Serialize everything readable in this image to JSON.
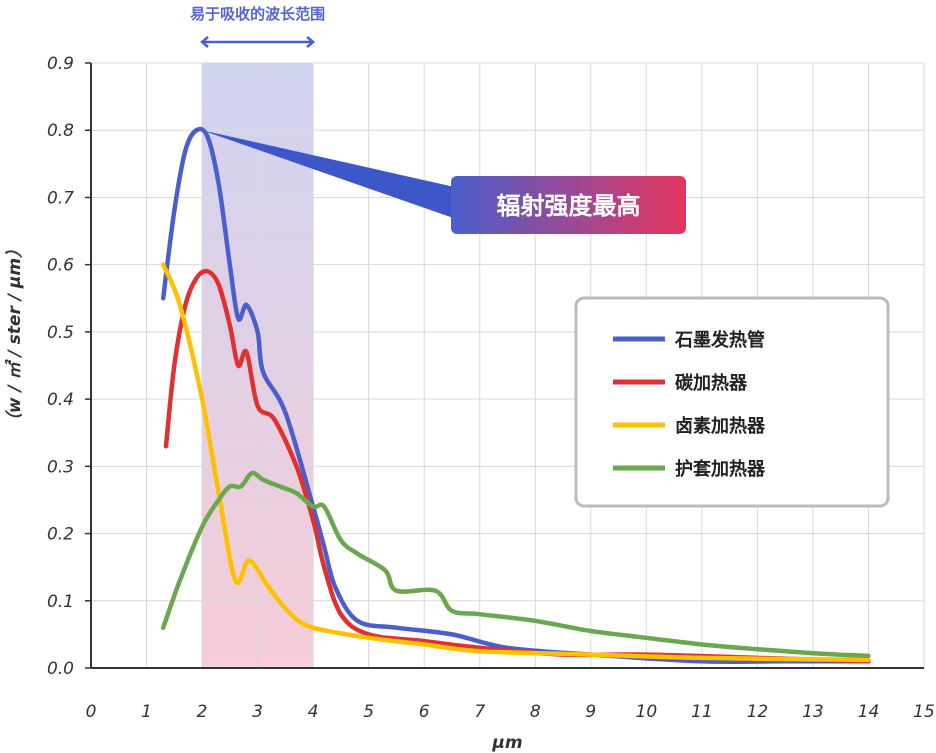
{
  "chart_data": {
    "type": "line",
    "xlabel": "μm",
    "ylabel": "（w / ㎡ / ster / μm）",
    "xlim": [
      0,
      15
    ],
    "ylim": [
      0,
      0.9
    ],
    "x_ticks": [
      "0",
      "1",
      "2",
      "3",
      "4",
      "5",
      "6",
      "7",
      "8",
      "9",
      "10",
      "11",
      "12",
      "13",
      "14",
      "15"
    ],
    "y_ticks": [
      "0.0",
      "0.1",
      "0.2",
      "0.3",
      "0.4",
      "0.5",
      "0.6",
      "0.7",
      "0.8",
      "0.9"
    ],
    "grid": true,
    "legend_position": "right",
    "absorption_band": {
      "label": "易于吸收的波长范围",
      "x_range": [
        2,
        4
      ]
    },
    "peak_callout": {
      "text": "辐射强度最高",
      "at": [
        2.0,
        0.8
      ]
    },
    "series": [
      {
        "name": "石墨发热管",
        "color": "#4a5fcc",
        "points": [
          [
            1.3,
            0.55
          ],
          [
            1.5,
            0.68
          ],
          [
            1.7,
            0.77
          ],
          [
            1.9,
            0.8
          ],
          [
            2.1,
            0.79
          ],
          [
            2.3,
            0.72
          ],
          [
            2.5,
            0.6
          ],
          [
            2.65,
            0.52
          ],
          [
            2.8,
            0.54
          ],
          [
            3.0,
            0.5
          ],
          [
            3.1,
            0.44
          ],
          [
            3.5,
            0.38
          ],
          [
            4.0,
            0.24
          ],
          [
            4.2,
            0.18
          ],
          [
            4.4,
            0.12
          ],
          [
            4.8,
            0.07
          ],
          [
            5.5,
            0.06
          ],
          [
            6.5,
            0.05
          ],
          [
            7.5,
            0.03
          ],
          [
            9,
            0.02
          ],
          [
            11,
            0.01
          ],
          [
            12.5,
            0.01
          ],
          [
            14,
            0.01
          ]
        ]
      },
      {
        "name": "碳加热器",
        "color": "#e03030",
        "points": [
          [
            1.35,
            0.33
          ],
          [
            1.5,
            0.45
          ],
          [
            1.7,
            0.54
          ],
          [
            1.9,
            0.58
          ],
          [
            2.1,
            0.59
          ],
          [
            2.3,
            0.57
          ],
          [
            2.5,
            0.51
          ],
          [
            2.65,
            0.45
          ],
          [
            2.8,
            0.47
          ],
          [
            3.0,
            0.39
          ],
          [
            3.3,
            0.37
          ],
          [
            3.7,
            0.3
          ],
          [
            4.0,
            0.22
          ],
          [
            4.2,
            0.15
          ],
          [
            4.5,
            0.08
          ],
          [
            5.0,
            0.05
          ],
          [
            6.0,
            0.04
          ],
          [
            7.0,
            0.03
          ],
          [
            8.5,
            0.02
          ],
          [
            10,
            0.02
          ],
          [
            12,
            0.015
          ],
          [
            14,
            0.01
          ]
        ]
      },
      {
        "name": "卤素加热器",
        "color": "#ffc000",
        "points": [
          [
            1.3,
            0.6
          ],
          [
            1.6,
            0.54
          ],
          [
            2.0,
            0.4
          ],
          [
            2.3,
            0.26
          ],
          [
            2.6,
            0.13
          ],
          [
            2.85,
            0.16
          ],
          [
            3.2,
            0.12
          ],
          [
            3.6,
            0.08
          ],
          [
            4.0,
            0.06
          ],
          [
            5.0,
            0.045
          ],
          [
            6.0,
            0.035
          ],
          [
            7.0,
            0.025
          ],
          [
            9.0,
            0.02
          ],
          [
            11.0,
            0.015
          ],
          [
            14,
            0.012
          ]
        ]
      },
      {
        "name": "护套加热器",
        "color": "#6aa84f",
        "points": [
          [
            1.3,
            0.06
          ],
          [
            1.6,
            0.13
          ],
          [
            2.0,
            0.21
          ],
          [
            2.3,
            0.25
          ],
          [
            2.5,
            0.27
          ],
          [
            2.7,
            0.27
          ],
          [
            2.9,
            0.29
          ],
          [
            3.1,
            0.28
          ],
          [
            3.4,
            0.27
          ],
          [
            3.7,
            0.26
          ],
          [
            4.0,
            0.24
          ],
          [
            4.2,
            0.24
          ],
          [
            4.5,
            0.19
          ],
          [
            4.8,
            0.17
          ],
          [
            5.3,
            0.145
          ],
          [
            5.5,
            0.115
          ],
          [
            6.2,
            0.115
          ],
          [
            6.5,
            0.085
          ],
          [
            7.0,
            0.08
          ],
          [
            8.0,
            0.07
          ],
          [
            9.0,
            0.055
          ],
          [
            10.0,
            0.045
          ],
          [
            11.0,
            0.035
          ],
          [
            12.0,
            0.028
          ],
          [
            13.0,
            0.022
          ],
          [
            14.0,
            0.018
          ]
        ]
      }
    ]
  }
}
